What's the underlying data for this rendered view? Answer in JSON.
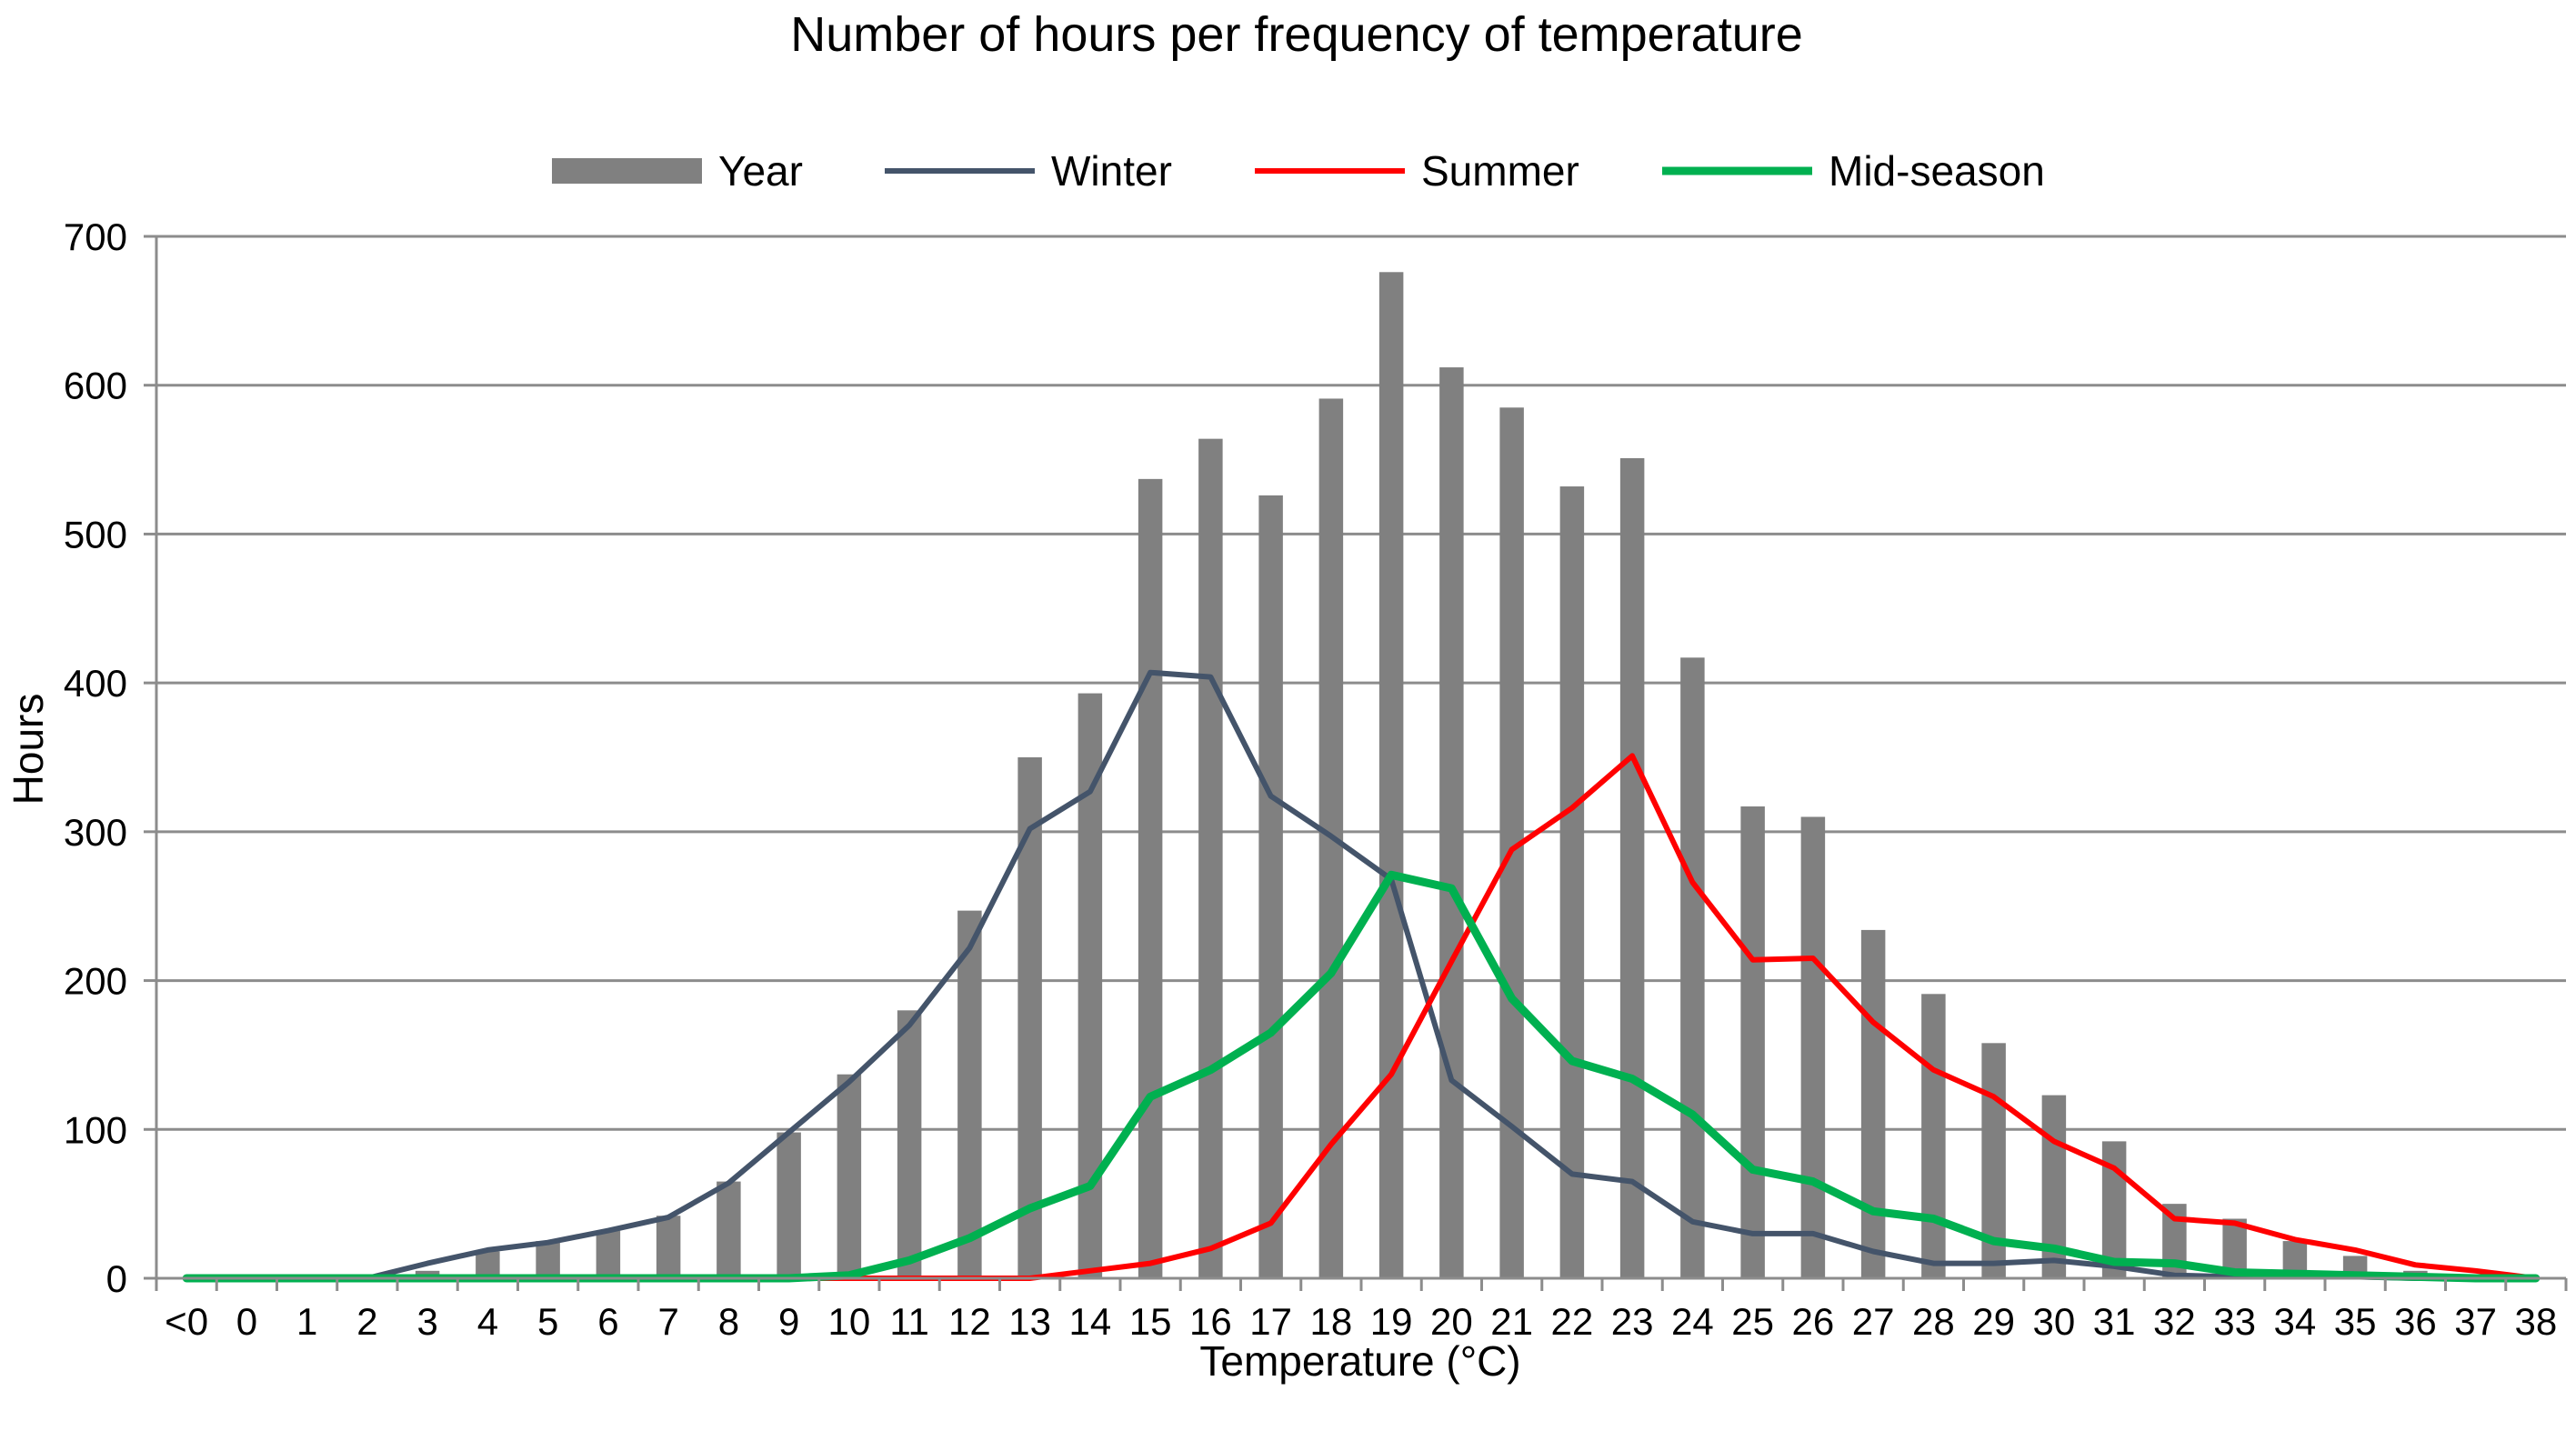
{
  "chart_data": {
    "type": "bar",
    "title": "Number of hours per frequency of temperature",
    "xlabel": "Temperature (°C)",
    "ylabel": "Hours",
    "ylim": [
      0,
      700
    ],
    "yticks": [
      "0",
      "100",
      "200",
      "300",
      "400",
      "500",
      "600",
      "700"
    ],
    "grid": true,
    "legend_position": "top",
    "categories": [
      "<0",
      "0",
      "1",
      "2",
      "3",
      "4",
      "5",
      "6",
      "7",
      "8",
      "9",
      "10",
      "11",
      "12",
      "13",
      "14",
      "15",
      "16",
      "17",
      "18",
      "19",
      "20",
      "21",
      "22",
      "23",
      "24",
      "25",
      "26",
      "27",
      "28",
      "29",
      "30",
      "31",
      "32",
      "33",
      "34",
      "35",
      "36",
      "37",
      "38"
    ],
    "series": [
      {
        "name": "Year",
        "type": "bar",
        "color": "#808080",
        "values": [
          0,
          0,
          0,
          0,
          5,
          18,
          25,
          32,
          42,
          65,
          98,
          137,
          180,
          247,
          350,
          393,
          537,
          564,
          526,
          591,
          676,
          612,
          585,
          532,
          551,
          417,
          317,
          310,
          234,
          191,
          158,
          123,
          92,
          50,
          40,
          25,
          15,
          5,
          1,
          0
        ]
      },
      {
        "name": "Winter",
        "type": "line",
        "color": "#44546a",
        "values": [
          0,
          0,
          0,
          0,
          10,
          19,
          24,
          32,
          41,
          64,
          98,
          132,
          170,
          222,
          302,
          327,
          407,
          404,
          324,
          297,
          268,
          133,
          102,
          70,
          65,
          38,
          30,
          30,
          18,
          10,
          10,
          12,
          8,
          2,
          1,
          1,
          1,
          0,
          0,
          0
        ]
      },
      {
        "name": "Summer",
        "type": "line",
        "color": "#ff0000",
        "values": [
          0,
          0,
          0,
          0,
          0,
          0,
          0,
          0,
          0,
          0,
          0,
          0,
          0,
          0,
          0,
          5,
          10,
          20,
          37,
          90,
          137,
          213,
          288,
          316,
          351,
          266,
          214,
          215,
          172,
          140,
          122,
          92,
          74,
          40,
          37,
          26,
          19,
          9,
          5,
          0
        ]
      },
      {
        "name": "Mid-season",
        "type": "line",
        "color": "#00b050",
        "values": [
          0,
          0,
          0,
          0,
          0,
          0,
          0,
          0,
          0,
          0,
          0,
          2,
          12,
          27,
          47,
          62,
          122,
          140,
          165,
          205,
          271,
          262,
          188,
          146,
          134,
          110,
          73,
          65,
          45,
          40,
          25,
          20,
          11,
          10,
          4,
          3,
          2,
          1,
          0,
          0
        ]
      }
    ]
  }
}
